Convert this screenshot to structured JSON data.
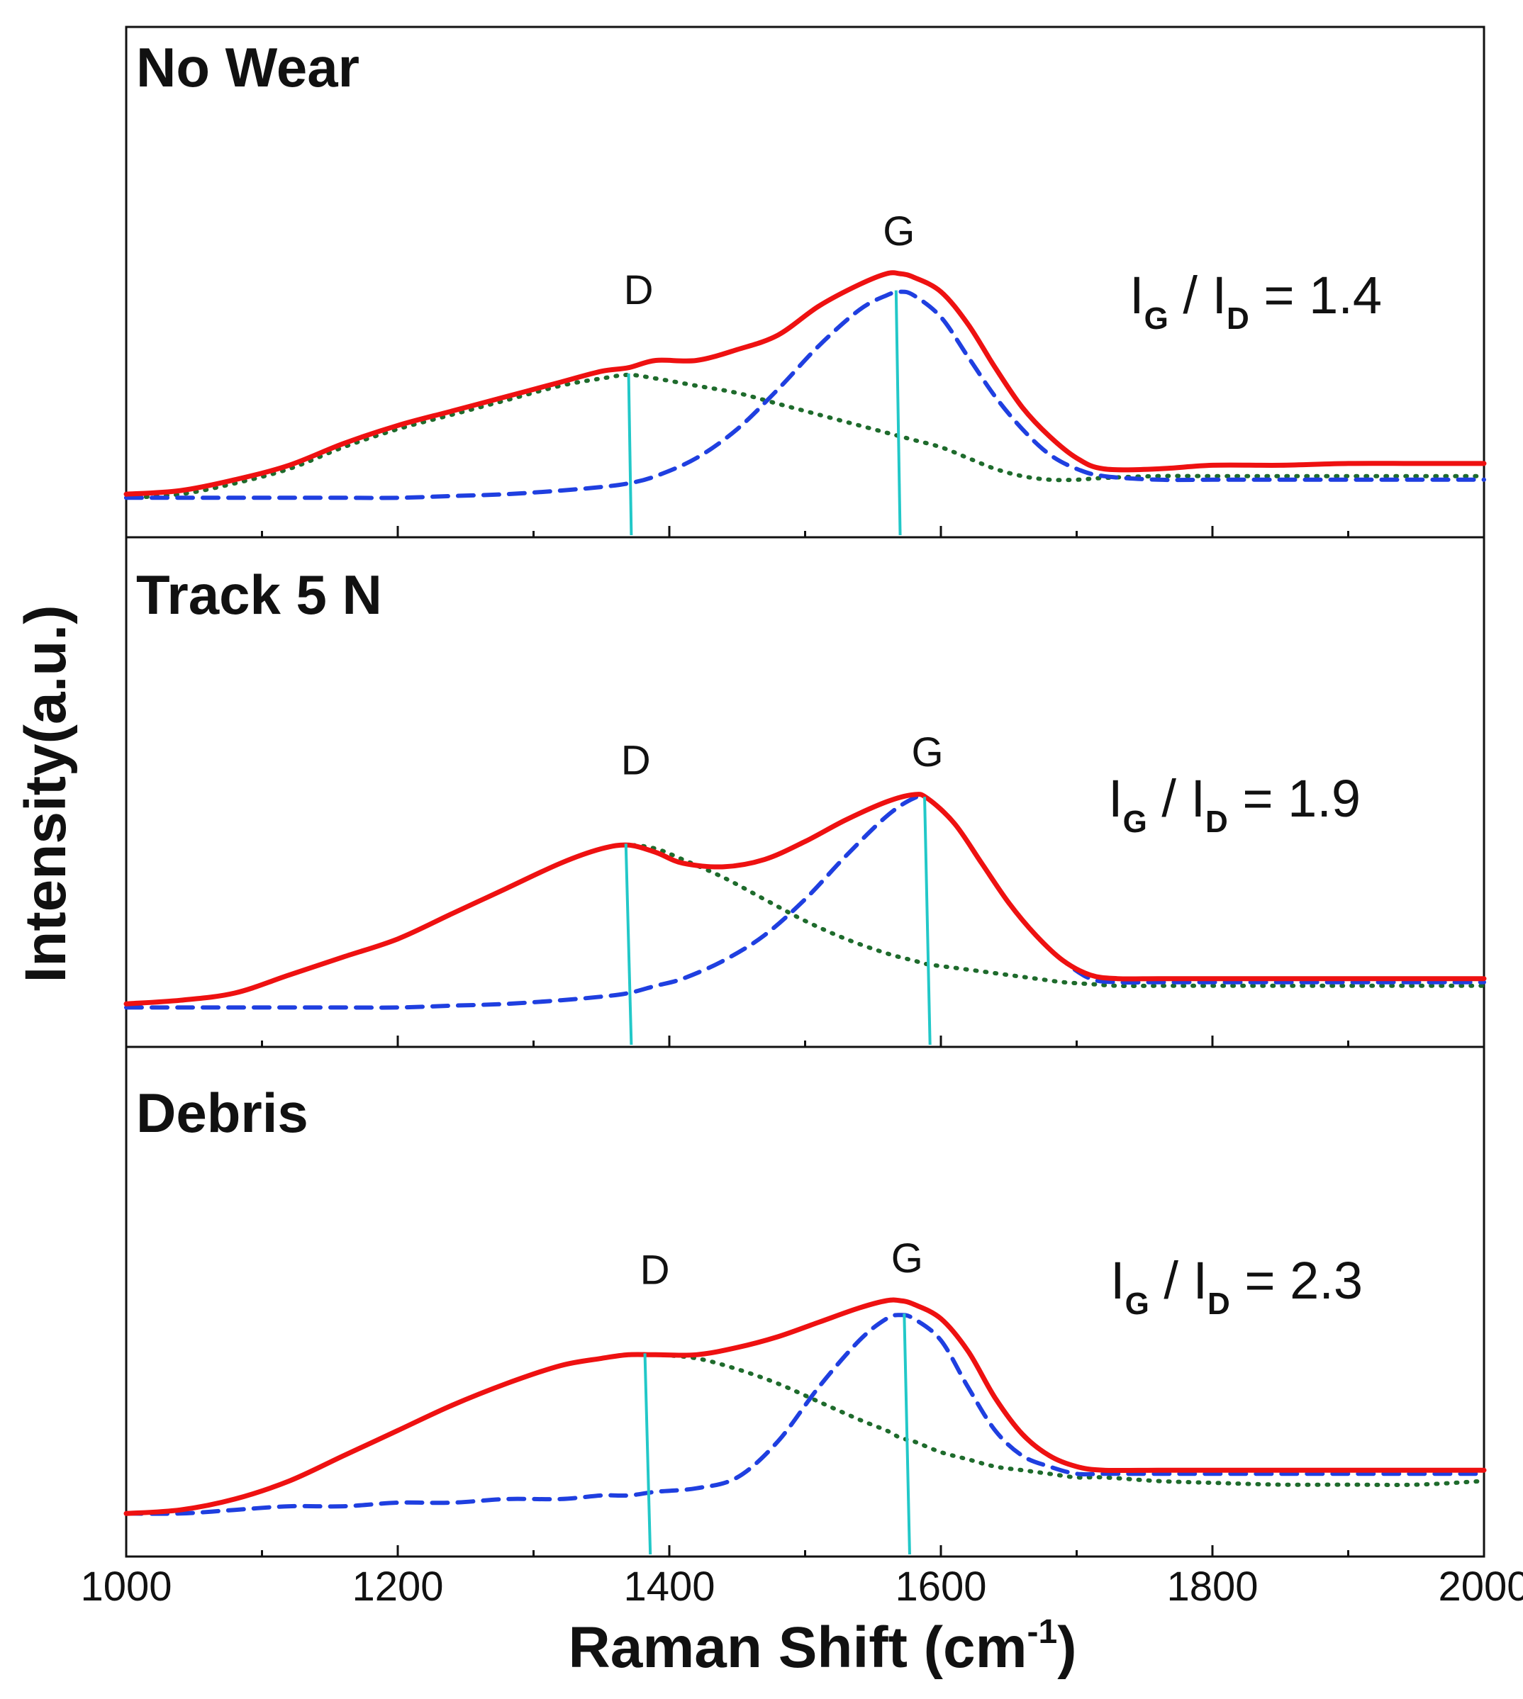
{
  "chart_data": {
    "type": "line",
    "xlabel": "Raman Shift (cm",
    "xlabel_sup": "-1",
    "xlabel_close": ")",
    "ylabel": "Intensity(a.u.)",
    "xlim": [
      1000,
      2000
    ],
    "xticks": [
      1000,
      1200,
      1400,
      1600,
      1800,
      2000
    ],
    "ylim": [
      0,
      1
    ],
    "colors": {
      "measured": "#ee1111",
      "g_fit": "#1f3fe0",
      "d_fit": "#1e6b2c",
      "peak_line": "#22c8c8"
    },
    "panels": [
      {
        "title": "No Wear",
        "ratio_label": "I",
        "ratio_sub_g": "G",
        "ratio_sep": " / I",
        "ratio_sub_d": "D",
        "ratio_value": "= 1.4",
        "d_label": "D",
        "g_label": "G",
        "d_peak_x": [
          1370,
          1372
        ],
        "g_peak_x": [
          1567,
          1570
        ],
        "x": [
          1000,
          1040,
          1080,
          1120,
          1160,
          1200,
          1240,
          1280,
          1320,
          1350,
          1370,
          1390,
          1420,
          1450,
          1480,
          1510,
          1540,
          1560,
          1570,
          1580,
          1600,
          1620,
          1640,
          1660,
          1680,
          1700,
          1720,
          1760,
          1800,
          1850,
          1900,
          1950,
          2000
        ],
        "measured": [
          0.08,
          0.09,
          0.12,
          0.16,
          0.22,
          0.27,
          0.31,
          0.35,
          0.39,
          0.42,
          0.43,
          0.45,
          0.45,
          0.48,
          0.52,
          0.6,
          0.66,
          0.69,
          0.69,
          0.68,
          0.64,
          0.55,
          0.43,
          0.32,
          0.24,
          0.18,
          0.15,
          0.15,
          0.16,
          0.16,
          0.165,
          0.165,
          0.165
        ],
        "d_fit": [
          0.07,
          0.08,
          0.11,
          0.15,
          0.21,
          0.26,
          0.3,
          0.34,
          0.38,
          0.4,
          0.41,
          0.4,
          0.38,
          0.36,
          0.33,
          0.3,
          0.27,
          0.25,
          0.24,
          0.23,
          0.21,
          0.18,
          0.15,
          0.13,
          0.12,
          0.12,
          0.125,
          0.13,
          0.13,
          0.13,
          0.13,
          0.13,
          0.13
        ],
        "g_fit": [
          0.07,
          0.07,
          0.07,
          0.07,
          0.07,
          0.07,
          0.075,
          0.08,
          0.09,
          0.1,
          0.11,
          0.13,
          0.18,
          0.26,
          0.37,
          0.49,
          0.59,
          0.63,
          0.64,
          0.63,
          0.57,
          0.46,
          0.35,
          0.26,
          0.19,
          0.15,
          0.13,
          0.12,
          0.12,
          0.12,
          0.12,
          0.12,
          0.12
        ]
      },
      {
        "title": "Track 5 N",
        "ratio_label": "I",
        "ratio_sub_g": "G",
        "ratio_sep": " / I",
        "ratio_sub_d": "D",
        "ratio_value": "= 1.9",
        "d_label": "D",
        "g_label": "G",
        "d_peak_x": [
          1368,
          1372
        ],
        "g_peak_x": [
          1588,
          1592
        ],
        "x": [
          1000,
          1040,
          1080,
          1120,
          1160,
          1200,
          1240,
          1280,
          1320,
          1350,
          1370,
          1390,
          1410,
          1440,
          1470,
          1500,
          1530,
          1560,
          1580,
          1590,
          1610,
          1630,
          1650,
          1670,
          1690,
          1710,
          1730,
          1760,
          1800,
          1850,
          1900,
          1950,
          2000
        ],
        "measured": [
          0.08,
          0.09,
          0.11,
          0.16,
          0.21,
          0.26,
          0.33,
          0.4,
          0.47,
          0.51,
          0.52,
          0.5,
          0.47,
          0.46,
          0.48,
          0.53,
          0.59,
          0.64,
          0.66,
          0.65,
          0.58,
          0.47,
          0.36,
          0.27,
          0.2,
          0.16,
          0.15,
          0.15,
          0.15,
          0.15,
          0.15,
          0.15,
          0.15
        ],
        "d_fit": [
          0.08,
          0.09,
          0.11,
          0.16,
          0.21,
          0.26,
          0.33,
          0.4,
          0.47,
          0.51,
          0.52,
          0.51,
          0.48,
          0.43,
          0.37,
          0.31,
          0.26,
          0.22,
          0.2,
          0.19,
          0.18,
          0.17,
          0.16,
          0.15,
          0.14,
          0.135,
          0.13,
          0.13,
          0.13,
          0.13,
          0.13,
          0.13,
          0.13
        ],
        "g_fit": [
          0.07,
          0.07,
          0.07,
          0.07,
          0.07,
          0.07,
          0.075,
          0.08,
          0.09,
          0.1,
          0.11,
          0.13,
          0.15,
          0.2,
          0.27,
          0.37,
          0.49,
          0.6,
          0.65,
          0.65,
          0.58,
          0.47,
          0.36,
          0.27,
          0.2,
          0.15,
          0.14,
          0.14,
          0.14,
          0.14,
          0.14,
          0.14,
          0.14
        ]
      },
      {
        "title": "Debris",
        "ratio_label": "I",
        "ratio_sub_g": "G",
        "ratio_sep": " / I",
        "ratio_sub_d": "D",
        "ratio_value": "= 2.3",
        "d_label": "D",
        "g_label": "G",
        "d_peak_x": [
          1382,
          1386
        ],
        "g_peak_x": [
          1573,
          1577
        ],
        "x": [
          1000,
          1040,
          1080,
          1120,
          1160,
          1200,
          1240,
          1280,
          1320,
          1350,
          1370,
          1390,
          1420,
          1450,
          1480,
          1510,
          1540,
          1560,
          1570,
          1580,
          1600,
          1620,
          1640,
          1660,
          1680,
          1700,
          1720,
          1760,
          1800,
          1850,
          1900,
          1950,
          2000
        ],
        "measured": [
          0.08,
          0.09,
          0.12,
          0.17,
          0.24,
          0.31,
          0.38,
          0.44,
          0.49,
          0.51,
          0.52,
          0.52,
          0.52,
          0.54,
          0.57,
          0.61,
          0.65,
          0.67,
          0.67,
          0.66,
          0.62,
          0.53,
          0.4,
          0.3,
          0.24,
          0.21,
          0.2,
          0.2,
          0.2,
          0.2,
          0.2,
          0.2,
          0.2
        ],
        "d_fit": [
          0.08,
          0.09,
          0.12,
          0.17,
          0.24,
          0.31,
          0.38,
          0.44,
          0.49,
          0.51,
          0.52,
          0.52,
          0.51,
          0.48,
          0.44,
          0.39,
          0.34,
          0.31,
          0.29,
          0.28,
          0.25,
          0.23,
          0.21,
          0.2,
          0.19,
          0.18,
          0.18,
          0.17,
          0.165,
          0.16,
          0.16,
          0.16,
          0.17
        ],
        "g_fit": [
          0.08,
          0.08,
          0.09,
          0.1,
          0.1,
          0.11,
          0.11,
          0.12,
          0.12,
          0.13,
          0.13,
          0.14,
          0.15,
          0.18,
          0.28,
          0.43,
          0.56,
          0.62,
          0.63,
          0.62,
          0.56,
          0.43,
          0.31,
          0.24,
          0.21,
          0.19,
          0.19,
          0.19,
          0.19,
          0.19,
          0.19,
          0.19,
          0.19
        ]
      }
    ]
  }
}
